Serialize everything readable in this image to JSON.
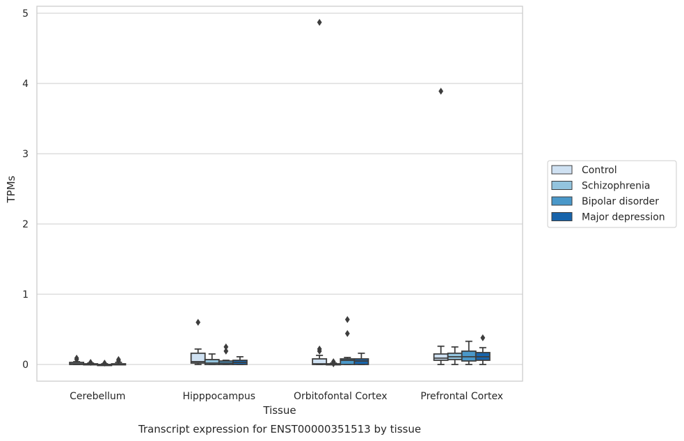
{
  "caption": "Transcript expression for ENST00000351513 by tissue",
  "colors": {
    "Control": "#cfe1f2",
    "Schizophrenia": "#93c4de",
    "Bipolar disorder": "#4a98c9",
    "Major depression": "#1764ab",
    "box_line": "#3d3d3d",
    "grid": "#cccccc",
    "frame": "#cccccc"
  },
  "chart_data": {
    "type": "box",
    "xlabel": "Tissue",
    "ylabel": "TPMs",
    "ylim": [
      -0.23,
      5.12
    ],
    "yticks": [
      0,
      1,
      2,
      3,
      4,
      5
    ],
    "grid": "horizontal",
    "legend_position": "right-outside",
    "categories": [
      "Cerebellum",
      "Hipppocampus",
      "Orbitofontal Cortex",
      "Prefrontal Cortex"
    ],
    "series": [
      {
        "name": "Control",
        "boxes": [
          {
            "min": 0.0,
            "q1": 0.0,
            "median": 0.01,
            "q3": 0.03,
            "max": 0.04,
            "outliers": [
              0.07,
              0.09
            ]
          },
          {
            "min": 0.0,
            "q1": 0.02,
            "median": 0.04,
            "q3": 0.16,
            "max": 0.22,
            "outliers": [
              0.6
            ]
          },
          {
            "min": 0.0,
            "q1": 0.0,
            "median": 0.01,
            "q3": 0.08,
            "max": 0.13,
            "outliers": [
              0.19,
              0.22,
              4.87
            ]
          },
          {
            "min": 0.0,
            "q1": 0.06,
            "median": 0.09,
            "q3": 0.15,
            "max": 0.26,
            "outliers": [
              3.89
            ]
          }
        ]
      },
      {
        "name": "Schizophrenia",
        "boxes": [
          {
            "min": 0.0,
            "q1": 0.0,
            "median": 0.0,
            "q3": 0.01,
            "max": 0.02,
            "outliers": [
              0.03
            ]
          },
          {
            "min": 0.0,
            "q1": 0.0,
            "median": 0.02,
            "q3": 0.07,
            "max": 0.15,
            "outliers": []
          },
          {
            "min": 0.0,
            "q1": 0.0,
            "median": 0.0,
            "q3": 0.01,
            "max": 0.02,
            "outliers": [
              0.04,
              0.01
            ]
          },
          {
            "min": 0.0,
            "q1": 0.07,
            "median": 0.11,
            "q3": 0.16,
            "max": 0.25,
            "outliers": []
          }
        ]
      },
      {
        "name": "Bipolar disorder",
        "boxes": [
          {
            "min": 0.0,
            "q1": 0.0,
            "median": 0.0,
            "q3": 0.0,
            "max": 0.01,
            "outliers": [
              0.02
            ]
          },
          {
            "min": 0.0,
            "q1": 0.0,
            "median": 0.02,
            "q3": 0.05,
            "max": 0.06,
            "outliers": [
              0.19,
              0.25
            ]
          },
          {
            "min": 0.0,
            "q1": 0.0,
            "median": 0.06,
            "q3": 0.08,
            "max": 0.1,
            "outliers": [
              0.44,
              0.64
            ]
          },
          {
            "min": 0.0,
            "q1": 0.05,
            "median": 0.11,
            "q3": 0.19,
            "max": 0.33,
            "outliers": []
          }
        ]
      },
      {
        "name": "Major depression",
        "boxes": [
          {
            "min": 0.0,
            "q1": 0.0,
            "median": 0.0,
            "q3": 0.01,
            "max": 0.03,
            "outliers": [
              0.05,
              0.07
            ]
          },
          {
            "min": 0.0,
            "q1": 0.0,
            "median": 0.03,
            "q3": 0.06,
            "max": 0.11,
            "outliers": []
          },
          {
            "min": 0.0,
            "q1": 0.0,
            "median": 0.05,
            "q3": 0.08,
            "max": 0.16,
            "outliers": []
          },
          {
            "min": 0.0,
            "q1": 0.06,
            "median": 0.11,
            "q3": 0.17,
            "max": 0.24,
            "outliers": [
              0.38
            ]
          }
        ]
      }
    ]
  }
}
